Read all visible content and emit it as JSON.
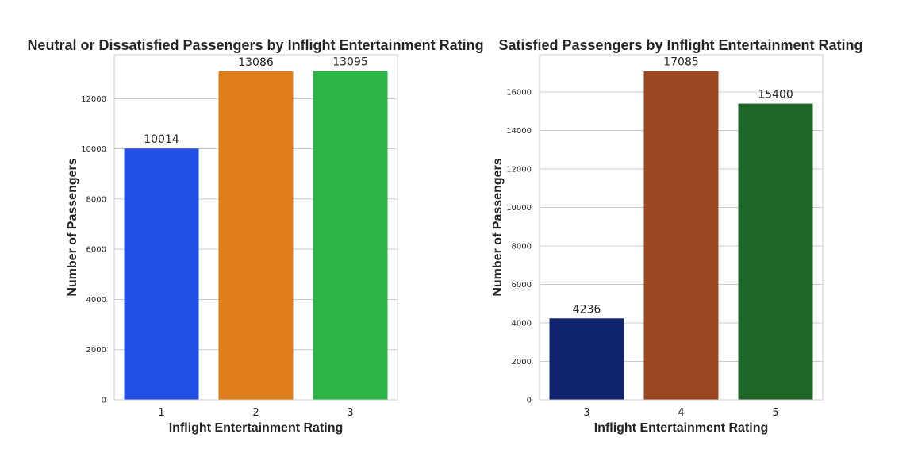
{
  "chart_data": [
    {
      "type": "bar",
      "title": "Neutral or Dissatisfied Passengers by Inflight Entertainment Rating",
      "xlabel": "Inflight Entertainment Rating",
      "ylabel": "Number of Passengers",
      "categories": [
        "1",
        "2",
        "3"
      ],
      "values": [
        10014,
        13086,
        13095
      ],
      "value_labels": [
        "10014",
        "13086",
        "13095"
      ],
      "colors": [
        "#2250e4",
        "#e17e1c",
        "#2db547"
      ],
      "ylim": [
        0,
        13750
      ],
      "yticks": [
        0,
        2000,
        4000,
        6000,
        8000,
        10000,
        12000
      ],
      "ytick_labels": [
        "0",
        "2000",
        "4000",
        "6000",
        "8000",
        "10000",
        "12000"
      ],
      "grid": true
    },
    {
      "type": "bar",
      "title": "Satisfied Passengers by Inflight Entertainment Rating",
      "xlabel": "Inflight Entertainment Rating",
      "ylabel": "Number of Passengers",
      "categories": [
        "3",
        "4",
        "5"
      ],
      "values": [
        4236,
        17085,
        15400
      ],
      "value_labels": [
        "4236",
        "17085",
        "15400"
      ],
      "colors": [
        "#0f236e",
        "#9b4720",
        "#1e6628"
      ],
      "ylim": [
        0,
        17940
      ],
      "yticks": [
        0,
        2000,
        4000,
        6000,
        8000,
        10000,
        12000,
        14000,
        16000
      ],
      "ytick_labels": [
        "0",
        "2000",
        "4000",
        "6000",
        "8000",
        "10000",
        "12000",
        "14000",
        "16000"
      ],
      "grid": true
    }
  ]
}
